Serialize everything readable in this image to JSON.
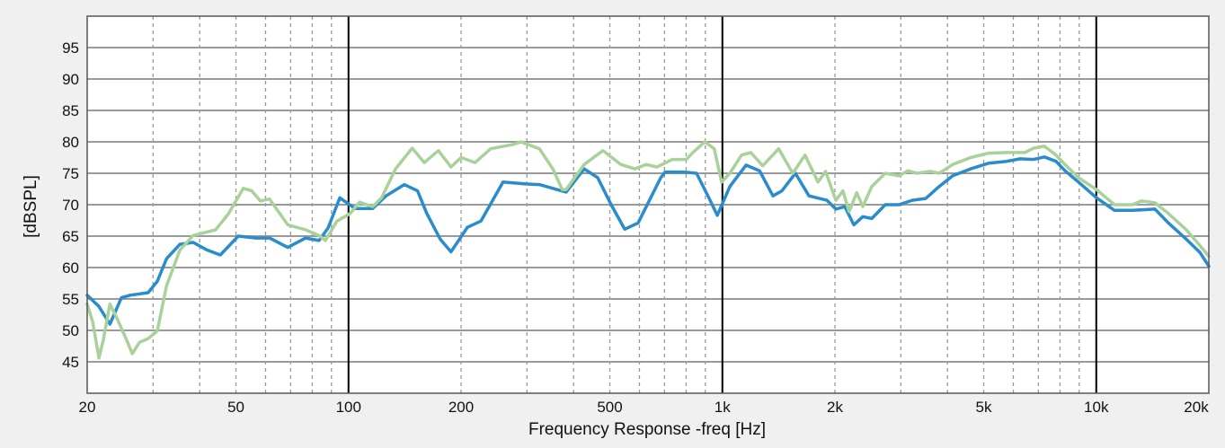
{
  "chart_data": {
    "type": "line",
    "title": "",
    "xlabel": "Frequency Response -freq [Hz]",
    "ylabel": "[dBSPL]",
    "xscale": "log",
    "xlim": [
      20,
      20000
    ],
    "ylim": [
      40,
      100
    ],
    "grid": true,
    "legend": "none",
    "x_ticks": [
      {
        "value": 20,
        "label": "20"
      },
      {
        "value": 50,
        "label": "50"
      },
      {
        "value": 100,
        "label": "100"
      },
      {
        "value": 200,
        "label": "200"
      },
      {
        "value": 500,
        "label": "500"
      },
      {
        "value": 1000,
        "label": "1k"
      },
      {
        "value": 2000,
        "label": "2k"
      },
      {
        "value": 5000,
        "label": "5k"
      },
      {
        "value": 10000,
        "label": "10k"
      },
      {
        "value": 20000,
        "label": "20k"
      }
    ],
    "y_ticks": [
      45,
      50,
      55,
      60,
      65,
      70,
      75,
      80,
      85,
      90,
      95
    ],
    "series": [
      {
        "name": "blue",
        "color": "#2a8ccc",
        "points": [
          [
            20,
            55.6
          ],
          [
            21.5,
            53.8
          ],
          [
            23,
            51
          ],
          [
            24.7,
            55.2
          ],
          [
            26.1,
            55.6
          ],
          [
            29.1,
            56
          ],
          [
            30.8,
            57.8
          ],
          [
            32.6,
            61.4
          ],
          [
            35.4,
            63.7
          ],
          [
            38.4,
            64
          ],
          [
            41.8,
            62.8
          ],
          [
            45.4,
            62
          ],
          [
            50.7,
            65
          ],
          [
            56.6,
            64.7
          ],
          [
            61.5,
            64.7
          ],
          [
            68.8,
            63.2
          ],
          [
            76.8,
            64.7
          ],
          [
            83.4,
            64.3
          ],
          [
            88.2,
            66.3
          ],
          [
            94.8,
            71.1
          ],
          [
            104,
            69.4
          ],
          [
            116,
            69.4
          ],
          [
            126,
            71.4
          ],
          [
            141,
            73.2
          ],
          [
            153,
            72.2
          ],
          [
            162,
            68.6
          ],
          [
            176,
            64.5
          ],
          [
            188,
            62.5
          ],
          [
            208,
            66.4
          ],
          [
            226,
            67.4
          ],
          [
            259,
            73.6
          ],
          [
            298,
            73.3
          ],
          [
            324,
            73.2
          ],
          [
            352,
            72.6
          ],
          [
            382,
            72
          ],
          [
            427,
            75.7
          ],
          [
            464,
            74.3
          ],
          [
            504,
            70
          ],
          [
            548,
            66.1
          ],
          [
            595,
            67.1
          ],
          [
            684,
            74.3
          ],
          [
            703,
            75.2
          ],
          [
            785,
            75.2
          ],
          [
            853,
            75
          ],
          [
            927,
            70.7
          ],
          [
            969,
            68.3
          ],
          [
            1047,
            72.9
          ],
          [
            1157,
            76.3
          ],
          [
            1257,
            75.4
          ],
          [
            1365,
            71.4
          ],
          [
            1443,
            72.2
          ],
          [
            1568,
            75
          ],
          [
            1704,
            71.4
          ],
          [
            1904,
            70.7
          ],
          [
            2011,
            69.3
          ],
          [
            2125,
            69.7
          ],
          [
            2246,
            66.8
          ],
          [
            2374,
            68.1
          ],
          [
            2510,
            67.8
          ],
          [
            2726,
            70
          ],
          [
            2964,
            70
          ],
          [
            3219,
            70.7
          ],
          [
            3499,
            71
          ],
          [
            3801,
            72.9
          ],
          [
            4130,
            74.6
          ],
          [
            4613,
            75.7
          ],
          [
            5153,
            76.6
          ],
          [
            5757,
            76.9
          ],
          [
            6255,
            77.3
          ],
          [
            6797,
            77.2
          ],
          [
            7265,
            77.6
          ],
          [
            7806,
            76.9
          ],
          [
            8249,
            75.4
          ],
          [
            8963,
            73.6
          ],
          [
            10013,
            71.1
          ],
          [
            11186,
            69.1
          ],
          [
            12498,
            69.1
          ],
          [
            14352,
            69.3
          ],
          [
            15592,
            67.1
          ],
          [
            17420,
            64.5
          ],
          [
            18930,
            62.4
          ],
          [
            20000,
            60.2
          ]
        ]
      },
      {
        "name": "green",
        "color": "#a8d29a",
        "points": [
          [
            20,
            54.2
          ],
          [
            20.7,
            51.3
          ],
          [
            21.5,
            45.6
          ],
          [
            22.1,
            48.5
          ],
          [
            23,
            54.2
          ],
          [
            24,
            52
          ],
          [
            25.4,
            48.7
          ],
          [
            26.4,
            46.3
          ],
          [
            27.6,
            48.1
          ],
          [
            29.1,
            48.7
          ],
          [
            30.8,
            49.9
          ],
          [
            32.6,
            57.1
          ],
          [
            35.4,
            62.8
          ],
          [
            38.4,
            65.1
          ],
          [
            44.1,
            66
          ],
          [
            47.8,
            68.6
          ],
          [
            52.3,
            72.6
          ],
          [
            55.1,
            72.2
          ],
          [
            58.1,
            70.6
          ],
          [
            61.5,
            70.9
          ],
          [
            68.8,
            66.8
          ],
          [
            76.8,
            66
          ],
          [
            83.4,
            65.1
          ],
          [
            86.7,
            64.3
          ],
          [
            93.2,
            67.4
          ],
          [
            101,
            68.6
          ],
          [
            107,
            70.4
          ],
          [
            116,
            69.7
          ],
          [
            122.6,
            71.1
          ],
          [
            133.6,
            75.7
          ],
          [
            148,
            79
          ],
          [
            159.5,
            76.7
          ],
          [
            174,
            78.6
          ],
          [
            188,
            76
          ],
          [
            200,
            77.5
          ],
          [
            218,
            76.7
          ],
          [
            240,
            78.9
          ],
          [
            276,
            79.6
          ],
          [
            289,
            80
          ],
          [
            324,
            78.9
          ],
          [
            352,
            75.7
          ],
          [
            373,
            72.4
          ],
          [
            382,
            72.4
          ],
          [
            427,
            76.4
          ],
          [
            479,
            78.6
          ],
          [
            535,
            76.4
          ],
          [
            583,
            75.7
          ],
          [
            625,
            76.4
          ],
          [
            668,
            76
          ],
          [
            735,
            77.2
          ],
          [
            801,
            77.2
          ],
          [
            833,
            78.3
          ],
          [
            898,
            80
          ],
          [
            951,
            78.9
          ],
          [
            995,
            73.6
          ],
          [
            1047,
            75
          ],
          [
            1125,
            77.9
          ],
          [
            1191,
            78.3
          ],
          [
            1282,
            76.2
          ],
          [
            1414,
            78.9
          ],
          [
            1543,
            75
          ],
          [
            1663,
            77.9
          ],
          [
            1801,
            73.6
          ],
          [
            1888,
            75.3
          ],
          [
            2011,
            70.7
          ],
          [
            2101,
            72.2
          ],
          [
            2183,
            68.9
          ],
          [
            2287,
            71.9
          ],
          [
            2374,
            69.7
          ],
          [
            2510,
            72.9
          ],
          [
            2726,
            75
          ],
          [
            2964,
            74.6
          ],
          [
            3135,
            75.4
          ],
          [
            3313,
            75
          ],
          [
            3597,
            75.3
          ],
          [
            3801,
            75
          ],
          [
            4130,
            76.4
          ],
          [
            4613,
            77.5
          ],
          [
            5153,
            78.2
          ],
          [
            5757,
            78.3
          ],
          [
            6447,
            78.3
          ],
          [
            6797,
            79
          ],
          [
            7265,
            79.3
          ],
          [
            7806,
            77.9
          ],
          [
            8249,
            76.4
          ],
          [
            8963,
            74.3
          ],
          [
            10013,
            72.4
          ],
          [
            11186,
            70
          ],
          [
            12498,
            70
          ],
          [
            13230,
            70.6
          ],
          [
            14352,
            70.3
          ],
          [
            15592,
            68.6
          ],
          [
            17420,
            66
          ],
          [
            18930,
            63.5
          ],
          [
            20000,
            61.8
          ]
        ]
      }
    ]
  }
}
